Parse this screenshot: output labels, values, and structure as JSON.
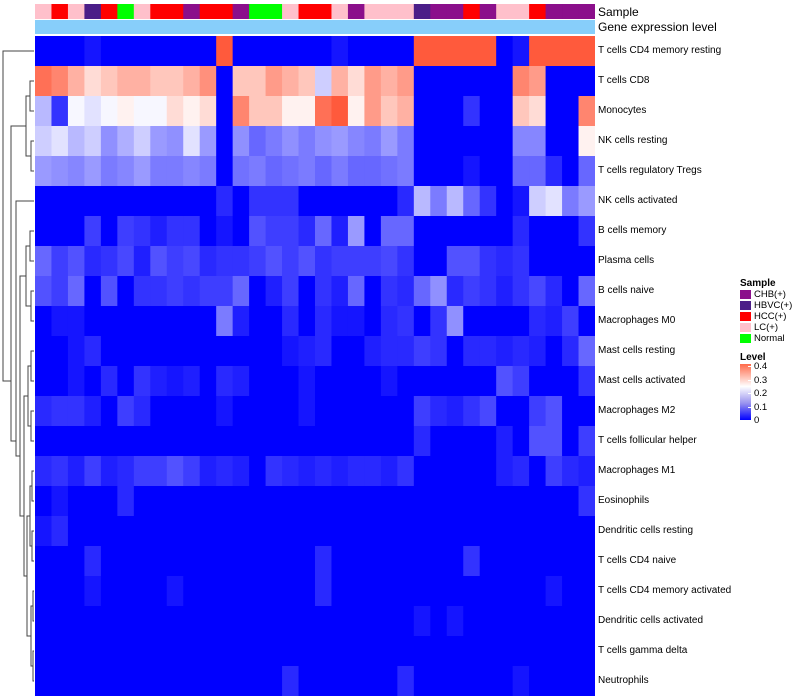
{
  "annotation_labels": {
    "sample": "Sample",
    "gene_expression": "Gene expression level"
  },
  "colors": {
    "CHB(+)": "#8b0f8b",
    "HBVC(+)": "#4b1e88",
    "HCC(+)": "#ff0000",
    "LC(+)": "#ffc0cb",
    "Normal": "#00ff00",
    "gene_bar": "#87cefa",
    "low": "#0000ff",
    "mid": "#ffffff",
    "high": "#ff5a3c"
  },
  "sample_codes": [
    "L",
    "C",
    "L",
    "B",
    "C",
    "N",
    "L",
    "C",
    "C",
    "H",
    "C",
    "C",
    "H",
    "N",
    "N",
    "L",
    "C",
    "C",
    "L",
    "H",
    "L",
    "L",
    "L",
    "B",
    "H",
    "H",
    "C",
    "H",
    "L",
    "L",
    "C",
    "H",
    "H",
    "H"
  ],
  "sample_code_map": {
    "C": "HCC(+)",
    "H": "CHB(+)",
    "B": "HBVC(+)",
    "L": "LC(+)",
    "N": "Normal"
  },
  "legend": {
    "sample_title": "Sample",
    "sample_items": [
      "CHB(+)",
      "HBVC(+)",
      "HCC(+)",
      "LC(+)",
      "Normal"
    ],
    "level_title": "Level",
    "level_ticks": [
      "0.4",
      "0.3",
      "0.2",
      "0.1",
      "0"
    ]
  },
  "chart_data": {
    "type": "heatmap",
    "title": "",
    "value_range": [
      0,
      0.4
    ],
    "rows": [
      "T cells CD4 memory resting",
      "T cells CD8",
      "Monocytes",
      "NK cells resting",
      "T cells regulatory  Tregs",
      "NK cells activated",
      "B cells memory",
      "Plasma cells",
      "B cells naive",
      "Macrophages M0",
      "Mast cells resting",
      "Mast cells activated",
      "Macrophages M2",
      "T cells follicular helper",
      "Macrophages M1",
      "Eosinophils",
      "Dendritic cells resting",
      "T cells CD4 naive",
      "T cells CD4 memory activated",
      "Dendritic cells activated",
      "T cells gamma delta",
      "Neutrophils"
    ],
    "n_columns": 34,
    "values": [
      [
        0,
        0,
        0,
        0.02,
        0,
        0,
        0,
        0,
        0,
        0,
        0,
        0.4,
        0,
        0,
        0,
        0,
        0,
        0,
        0.02,
        0,
        0,
        0,
        0,
        0.4,
        0.4,
        0.4,
        0.4,
        0.4,
        0,
        0.02,
        0.4,
        0.4,
        0.4,
        0.4
      ],
      [
        0.38,
        0.36,
        0.32,
        0.28,
        0.3,
        0.32,
        0.32,
        0.3,
        0.3,
        0.32,
        0.35,
        0,
        0.3,
        0.3,
        0.34,
        0.32,
        0.3,
        0.2,
        0.32,
        0.28,
        0.34,
        0.32,
        0.34,
        0,
        0,
        0,
        0,
        0,
        0,
        0.36,
        0.34,
        0,
        0,
        0
      ],
      [
        0.18,
        0.05,
        0.24,
        0.22,
        0.24,
        0.26,
        0.24,
        0.24,
        0.28,
        0.26,
        0.28,
        0,
        0.36,
        0.3,
        0.3,
        0.26,
        0.26,
        0.38,
        0.42,
        0.26,
        0.34,
        0.3,
        0.32,
        0,
        0,
        0,
        0.05,
        0,
        0,
        0.3,
        0.28,
        0,
        0,
        0.36
      ],
      [
        0.2,
        0.22,
        0.18,
        0.2,
        0.14,
        0.17,
        0.2,
        0.15,
        0.14,
        0.22,
        0.15,
        0,
        0.14,
        0.1,
        0.12,
        0.14,
        0.12,
        0.14,
        0.15,
        0.13,
        0.12,
        0.15,
        0.12,
        0,
        0,
        0,
        0,
        0,
        0,
        0.13,
        0.13,
        0,
        0,
        0.26
      ],
      [
        0.15,
        0.14,
        0.13,
        0.15,
        0.12,
        0.13,
        0.15,
        0.12,
        0.12,
        0.13,
        0.12,
        0,
        0.11,
        0.12,
        0.1,
        0.11,
        0.12,
        0.1,
        0.12,
        0.1,
        0.1,
        0.11,
        0.12,
        0,
        0,
        0,
        0.02,
        0,
        0,
        0.1,
        0.1,
        0.04,
        0,
        0.1
      ],
      [
        0,
        0,
        0,
        0,
        0,
        0,
        0,
        0,
        0,
        0,
        0,
        0.04,
        0,
        0.05,
        0.05,
        0.05,
        0,
        0,
        0,
        0,
        0,
        0,
        0.04,
        0.18,
        0.12,
        0.18,
        0.1,
        0.05,
        0,
        0.02,
        0.2,
        0.22,
        0.12,
        0.15
      ],
      [
        0,
        0,
        0,
        0.06,
        0,
        0.06,
        0.05,
        0.03,
        0.05,
        0.05,
        0,
        0.02,
        0,
        0.08,
        0.06,
        0.06,
        0.04,
        0.1,
        0.03,
        0.15,
        0,
        0.1,
        0.1,
        0,
        0,
        0,
        0,
        0,
        0,
        0.04,
        0,
        0,
        0,
        0.05
      ],
      [
        0.1,
        0.06,
        0.08,
        0.04,
        0.05,
        0.07,
        0.03,
        0.08,
        0.06,
        0.07,
        0.04,
        0.05,
        0.05,
        0.06,
        0.08,
        0.06,
        0.08,
        0.05,
        0.06,
        0.06,
        0.06,
        0.07,
        0.05,
        0,
        0,
        0.08,
        0.08,
        0.05,
        0.04,
        0.05,
        0,
        0,
        0,
        0
      ],
      [
        0.08,
        0.06,
        0.1,
        0,
        0.08,
        0,
        0.05,
        0.05,
        0.06,
        0.05,
        0.06,
        0.06,
        0.1,
        0,
        0.03,
        0.06,
        0,
        0.05,
        0.03,
        0.1,
        0,
        0.05,
        0.04,
        0.1,
        0.14,
        0.04,
        0.06,
        0.05,
        0.03,
        0.05,
        0.07,
        0.04,
        0,
        0.1
      ],
      [
        0,
        0.02,
        0.02,
        0,
        0,
        0,
        0,
        0,
        0,
        0,
        0,
        0.12,
        0.03,
        0,
        0,
        0.04,
        0,
        0.04,
        0.02,
        0.02,
        0,
        0.04,
        0.05,
        0,
        0.05,
        0.14,
        0,
        0,
        0,
        0,
        0.04,
        0.03,
        0.06,
        0
      ],
      [
        0,
        0,
        0.02,
        0.04,
        0,
        0,
        0,
        0,
        0,
        0,
        0,
        0,
        0,
        0,
        0,
        0.02,
        0.03,
        0.04,
        0,
        0,
        0.03,
        0.04,
        0.04,
        0.06,
        0.05,
        0,
        0.04,
        0.04,
        0.03,
        0.04,
        0.03,
        0,
        0.04,
        0.1
      ],
      [
        0,
        0,
        0.02,
        0,
        0.04,
        0,
        0.05,
        0.03,
        0.02,
        0.03,
        0,
        0.04,
        0.03,
        0,
        0,
        0,
        0.02,
        0,
        0,
        0,
        0,
        0.02,
        0,
        0,
        0,
        0,
        0,
        0,
        0.08,
        0.06,
        0,
        0,
        0,
        0.05
      ],
      [
        0.04,
        0.05,
        0.05,
        0.03,
        0,
        0.06,
        0.04,
        0,
        0,
        0,
        0,
        0.02,
        0,
        0,
        0,
        0,
        0.02,
        0,
        0,
        0,
        0,
        0,
        0,
        0.06,
        0.04,
        0.03,
        0.05,
        0.07,
        0,
        0,
        0.06,
        0.08,
        0,
        0
      ],
      [
        0,
        0,
        0,
        0,
        0,
        0,
        0,
        0,
        0,
        0,
        0,
        0,
        0,
        0,
        0,
        0,
        0,
        0,
        0,
        0,
        0,
        0,
        0,
        0.04,
        0,
        0,
        0,
        0,
        0.03,
        0,
        0.08,
        0.08,
        0,
        0.06
      ],
      [
        0.04,
        0.05,
        0.03,
        0.06,
        0.03,
        0.04,
        0.06,
        0.06,
        0.08,
        0.06,
        0.03,
        0.04,
        0.03,
        0,
        0.05,
        0.04,
        0.03,
        0.04,
        0.03,
        0.04,
        0.04,
        0.03,
        0.05,
        0,
        0,
        0,
        0,
        0,
        0.03,
        0.04,
        0,
        0.06,
        0.04,
        0.03
      ],
      [
        0,
        0.02,
        0,
        0,
        0,
        0.04,
        0,
        0,
        0,
        0,
        0,
        0,
        0,
        0,
        0,
        0,
        0,
        0,
        0,
        0,
        0,
        0,
        0,
        0,
        0,
        0,
        0,
        0,
        0,
        0,
        0,
        0,
        0,
        0.05
      ],
      [
        0.02,
        0.04,
        0,
        0,
        0,
        0,
        0,
        0,
        0,
        0,
        0,
        0,
        0,
        0,
        0,
        0,
        0,
        0,
        0,
        0,
        0,
        0,
        0,
        0,
        0,
        0,
        0,
        0,
        0,
        0,
        0,
        0,
        0,
        0
      ],
      [
        0,
        0,
        0,
        0.04,
        0,
        0,
        0,
        0,
        0,
        0,
        0,
        0,
        0,
        0,
        0,
        0,
        0,
        0.04,
        0,
        0,
        0,
        0,
        0,
        0,
        0,
        0,
        0.05,
        0,
        0,
        0,
        0,
        0,
        0,
        0
      ],
      [
        0,
        0,
        0,
        0.02,
        0,
        0,
        0,
        0,
        0.02,
        0,
        0,
        0,
        0,
        0,
        0,
        0,
        0,
        0.04,
        0,
        0,
        0,
        0,
        0,
        0,
        0,
        0,
        0,
        0,
        0,
        0,
        0,
        0.02,
        0,
        0
      ],
      [
        0,
        0,
        0,
        0,
        0,
        0,
        0,
        0,
        0,
        0,
        0,
        0,
        0,
        0,
        0,
        0,
        0,
        0,
        0,
        0,
        0,
        0,
        0,
        0.02,
        0,
        0.02,
        0,
        0,
        0,
        0,
        0,
        0,
        0,
        0
      ],
      [
        0,
        0,
        0,
        0,
        0,
        0,
        0,
        0,
        0,
        0,
        0,
        0,
        0,
        0,
        0,
        0,
        0,
        0,
        0,
        0,
        0,
        0,
        0,
        0,
        0,
        0,
        0,
        0,
        0,
        0,
        0,
        0,
        0,
        0
      ],
      [
        0,
        0,
        0,
        0,
        0,
        0,
        0,
        0,
        0,
        0,
        0,
        0,
        0,
        0,
        0,
        0.04,
        0,
        0,
        0,
        0,
        0,
        0,
        0.04,
        0,
        0,
        0,
        0,
        0,
        0,
        0.02,
        0,
        0,
        0,
        0
      ]
    ]
  }
}
